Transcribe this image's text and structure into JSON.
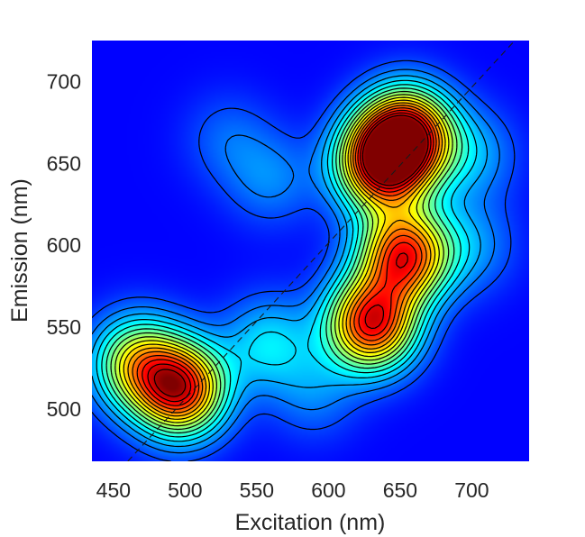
{
  "chart_data": {
    "type": "heatmap",
    "subtype": "contour-filled",
    "title": "",
    "xlabel": "Excitation (nm)",
    "ylabel": "Emission (nm)",
    "xlim": [
      435,
      740
    ],
    "ylim": [
      468,
      725
    ],
    "xticks": [
      "450",
      "500",
      "550",
      "600",
      "650",
      "700"
    ],
    "yticks": [
      "500",
      "550",
      "600",
      "650",
      "700"
    ],
    "colormap": "jet",
    "contour_lines": true,
    "contour_levels": 16,
    "grid": false,
    "reference_line": {
      "style": "dashed",
      "x": [
        460,
        730
      ],
      "y": [
        468,
        725
      ]
    },
    "background_level": 0.06,
    "peaks": [
      {
        "x": 637,
        "y": 650,
        "intensity": 0.97
      },
      {
        "x": 655,
        "y": 668,
        "intensity": 0.95
      },
      {
        "x": 630,
        "y": 552,
        "intensity": 0.97
      },
      {
        "x": 653,
        "y": 594,
        "intensity": 0.92
      },
      {
        "x": 497,
        "y": 512,
        "intensity": 0.95
      },
      {
        "x": 466,
        "y": 528,
        "intensity": 0.58
      },
      {
        "x": 558,
        "y": 540,
        "intensity": 0.28
      },
      {
        "x": 560,
        "y": 640,
        "intensity": 0.16
      },
      {
        "x": 530,
        "y": 665,
        "intensity": 0.12
      },
      {
        "x": 700,
        "y": 655,
        "intensity": 0.2
      },
      {
        "x": 700,
        "y": 600,
        "intensity": 0.17
      },
      {
        "x": 590,
        "y": 510,
        "intensity": 0.15
      }
    ]
  }
}
